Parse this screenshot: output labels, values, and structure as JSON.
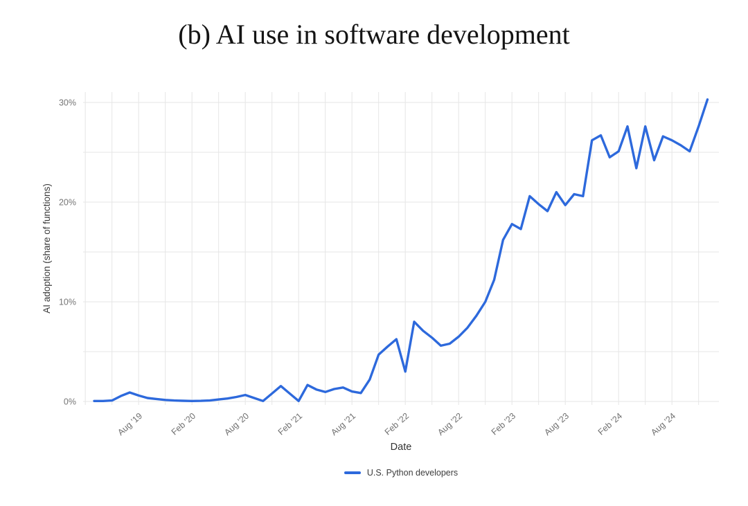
{
  "title": "(b) AI use in software development",
  "legend": {
    "position": "bottom",
    "entries": [
      {
        "label": "U.S. Python developers",
        "color": "#2d69dc"
      }
    ]
  },
  "chart_data": {
    "type": "line",
    "title": "(b) AI use in software development",
    "xlabel": "Date",
    "ylabel": "AI adoption (share of functions)",
    "grid": "on",
    "legend_position": "bottom",
    "y_axis": {
      "min": 0,
      "max": 31,
      "unit": "percent",
      "tick_values": [
        0,
        10,
        20,
        30
      ],
      "tick_labels": [
        "0%",
        "10%",
        "20%",
        "30%"
      ],
      "gridline_step_pct": 5
    },
    "x_axis": {
      "tick_labels": [
        "Aug '19",
        "Feb '20",
        "Aug '20",
        "Feb '21",
        "Aug '21",
        "Feb '22",
        "Aug '22",
        "Feb '23",
        "Aug '23",
        "Feb '24",
        "Aug '24"
      ],
      "minor_gridline_every_months": 3,
      "first_gridline_month": "2019-02",
      "last_gridline_month": "2024-11"
    },
    "series": [
      {
        "name": "U.S. Python developers",
        "color": "#2d69dc",
        "x_monthly": true,
        "x": [
          "2019-03",
          "2019-04",
          "2019-05",
          "2019-06",
          "2019-07",
          "2019-08",
          "2019-09",
          "2019-10",
          "2019-11",
          "2019-12",
          "2020-01",
          "2020-02",
          "2020-03",
          "2020-04",
          "2020-05",
          "2020-06",
          "2020-07",
          "2020-08",
          "2020-09",
          "2020-10",
          "2020-11",
          "2020-12",
          "2021-01",
          "2021-02",
          "2021-03",
          "2021-04",
          "2021-05",
          "2021-06",
          "2021-07",
          "2021-08",
          "2021-09",
          "2021-10",
          "2021-11",
          "2021-12",
          "2022-01",
          "2022-02",
          "2022-03",
          "2022-04",
          "2022-05",
          "2022-06",
          "2022-07",
          "2022-08",
          "2022-09",
          "2022-10",
          "2022-11",
          "2022-12",
          "2023-01",
          "2023-02",
          "2023-03",
          "2023-04",
          "2023-05",
          "2023-06",
          "2023-07",
          "2023-08",
          "2023-09",
          "2023-10",
          "2023-11",
          "2023-12",
          "2024-01",
          "2024-02",
          "2024-03",
          "2024-04",
          "2024-05",
          "2024-06",
          "2024-07",
          "2024-08",
          "2024-09",
          "2024-10",
          "2024-11",
          "2024-12"
        ],
        "y_pct": [
          0.05,
          0.05,
          0.1,
          0.55,
          0.9,
          0.6,
          0.35,
          0.25,
          0.15,
          0.1,
          0.07,
          0.05,
          0.06,
          0.1,
          0.2,
          0.3,
          0.45,
          0.65,
          0.35,
          0.05,
          0.8,
          1.55,
          0.8,
          0.05,
          1.65,
          1.2,
          0.95,
          1.25,
          1.4,
          1.0,
          0.85,
          2.2,
          4.7,
          5.5,
          6.25,
          3.0,
          8.0,
          7.1,
          6.4,
          5.6,
          5.8,
          6.5,
          7.4,
          8.6,
          10.0,
          12.2,
          16.2,
          17.8,
          17.3,
          20.6,
          19.8,
          19.1,
          21.0,
          19.7,
          20.8,
          20.6,
          26.2,
          26.7,
          24.5,
          25.1,
          27.6,
          23.4,
          27.6,
          24.2,
          26.6,
          26.2,
          25.7,
          25.1,
          27.6,
          30.3
        ]
      }
    ],
    "colors": {
      "line": "#2d69dc",
      "gridline": "#e6e6e6",
      "y_tick_label": "#757575",
      "x_tick_label": "#6f6f6f",
      "axis_title": "#3a3a3a",
      "background": "#ffffff"
    }
  }
}
